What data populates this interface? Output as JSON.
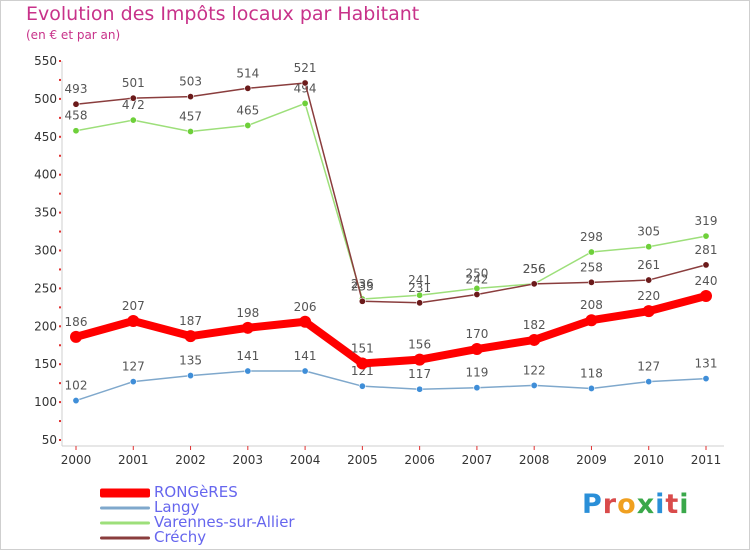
{
  "title": "Evolution des Impôts locaux par Habitant",
  "subtitle": "(en € et par an)",
  "logo": {
    "text": "Proxiti",
    "colors": [
      "#2a8fd8",
      "#d94b4b",
      "#f0a020",
      "#3aa84a",
      "#2a8fd8",
      "#d94b4b",
      "#3aa84a"
    ]
  },
  "chart_data": {
    "type": "line",
    "x": [
      2000,
      2001,
      2002,
      2003,
      2004,
      2005,
      2006,
      2007,
      2008,
      2009,
      2010,
      2011
    ],
    "ylim": [
      50,
      550
    ],
    "yticks": [
      50,
      100,
      150,
      200,
      250,
      300,
      350,
      400,
      450,
      500,
      550
    ],
    "grid": false,
    "legend": "bottom-left",
    "series": [
      {
        "name": "RONGèRES",
        "color": "#ff0000",
        "marker_fill": "#ff0000",
        "width": 8,
        "values": [
          186,
          207,
          187,
          198,
          206,
          151,
          156,
          170,
          182,
          208,
          220,
          240
        ],
        "labels": [
          "186",
          "207",
          "187",
          "198",
          "206",
          "151",
          "156",
          "170",
          "182",
          "208",
          "220",
          "240"
        ]
      },
      {
        "name": "Langy",
        "color": "#7fa8cc",
        "marker_fill": "#3f8ed8",
        "width": 1.5,
        "values": [
          102,
          127,
          135,
          141,
          141,
          121,
          117,
          119,
          122,
          118,
          127,
          131
        ],
        "labels": [
          "102",
          "127",
          "135",
          "141",
          "141",
          "121",
          "117",
          "119",
          "122",
          "118",
          "127",
          "131"
        ]
      },
      {
        "name": "Varennes-sur-Allier",
        "color": "#9ddf7a",
        "marker_fill": "#6ed03a",
        "width": 1.5,
        "values": [
          458,
          472,
          457,
          465,
          494,
          236,
          241,
          250,
          256,
          298,
          305,
          319
        ],
        "labels": [
          "458",
          "472",
          "457",
          "465",
          "494",
          "236",
          "241",
          "250",
          "256",
          "298",
          "305",
          "319"
        ]
      },
      {
        "name": "Créchy",
        "color": "#8a3d3d",
        "marker_fill": "#6b1a1a",
        "width": 1.5,
        "values": [
          493,
          501,
          503,
          514,
          521,
          233,
          231,
          242,
          256,
          258,
          261,
          281
        ],
        "labels": [
          "493",
          "501",
          "503",
          "514",
          "521",
          "233",
          "231",
          "242",
          "256",
          "258",
          "261",
          "281"
        ]
      }
    ]
  }
}
